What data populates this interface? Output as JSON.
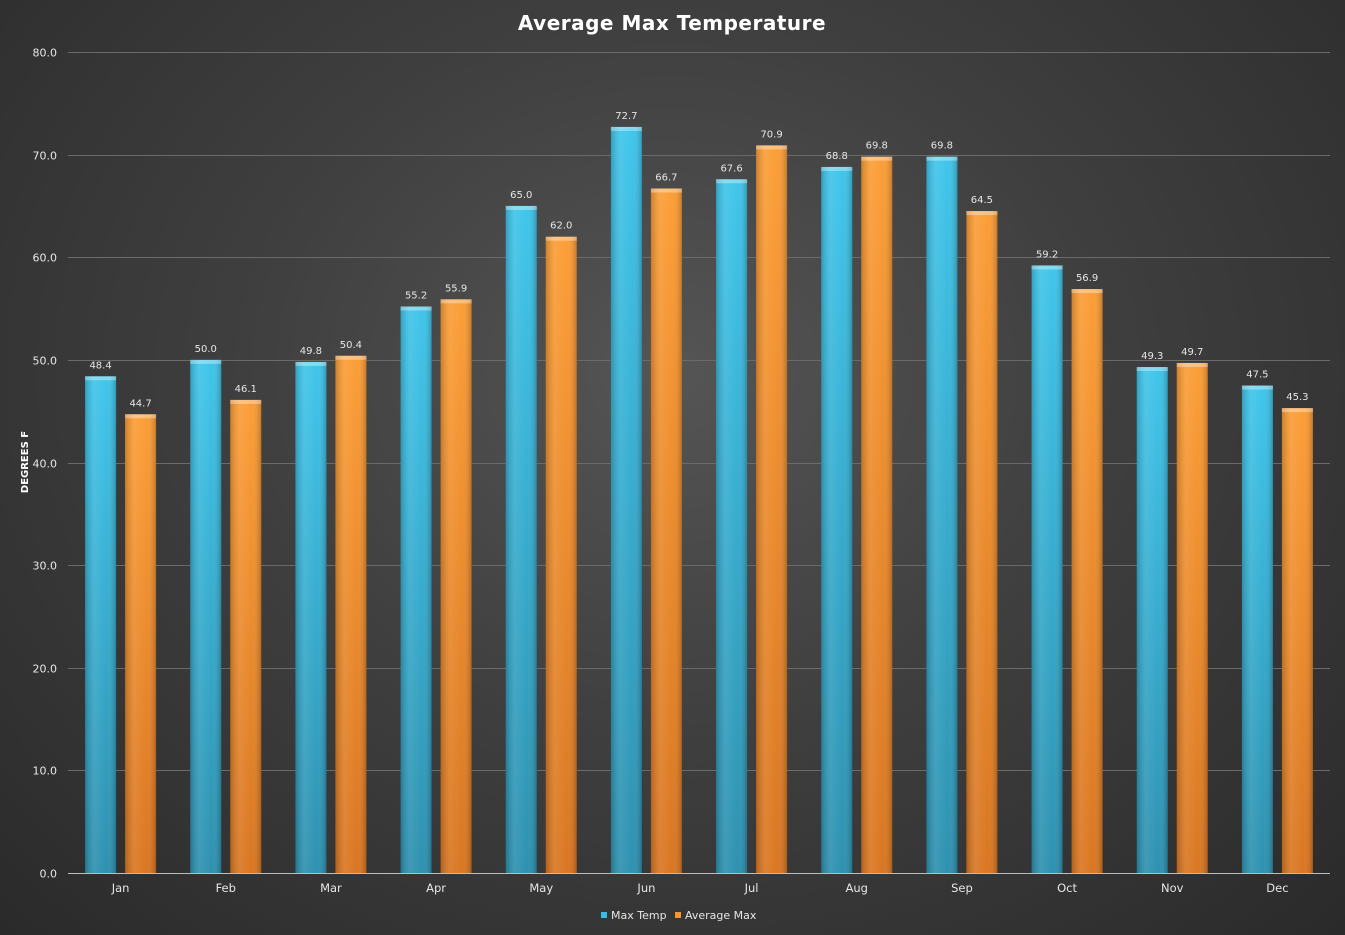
{
  "chart_data": {
    "type": "bar",
    "title": "Average Max Temperature",
    "xlabel": "",
    "ylabel": "DEGREES F",
    "ylim": [
      0,
      80
    ],
    "yticks": [
      "0.0",
      "10.0",
      "20.0",
      "30.0",
      "40.0",
      "50.0",
      "60.0",
      "70.0",
      "80.0"
    ],
    "grid": true,
    "legend_position": "bottom",
    "categories": [
      "Jan",
      "Feb",
      "Mar",
      "Apr",
      "May",
      "Jun",
      "Jul",
      "Aug",
      "Sep",
      "Oct",
      "Nov",
      "Dec"
    ],
    "series": [
      {
        "name": "Max Temp",
        "color": "#38BDE3",
        "values": [
          48.4,
          50.0,
          49.8,
          55.2,
          65.0,
          72.7,
          67.6,
          68.8,
          69.8,
          59.2,
          49.3,
          47.5
        ],
        "labels": [
          "48.4",
          "50.0",
          "49.8",
          "55.2",
          "65.0",
          "72.7",
          "67.6",
          "68.8",
          "69.8",
          "59.2",
          "49.3",
          "47.5"
        ]
      },
      {
        "name": "Average Max",
        "color": "#F7962E",
        "values": [
          44.7,
          46.1,
          50.4,
          55.9,
          62.0,
          66.7,
          70.9,
          69.8,
          64.5,
          56.9,
          49.7,
          45.3
        ],
        "labels": [
          "44.7",
          "46.1",
          "50.4",
          "55.9",
          "62.0",
          "66.7",
          "70.9",
          "69.8",
          "64.5",
          "56.9",
          "49.7",
          "45.3"
        ]
      }
    ]
  }
}
